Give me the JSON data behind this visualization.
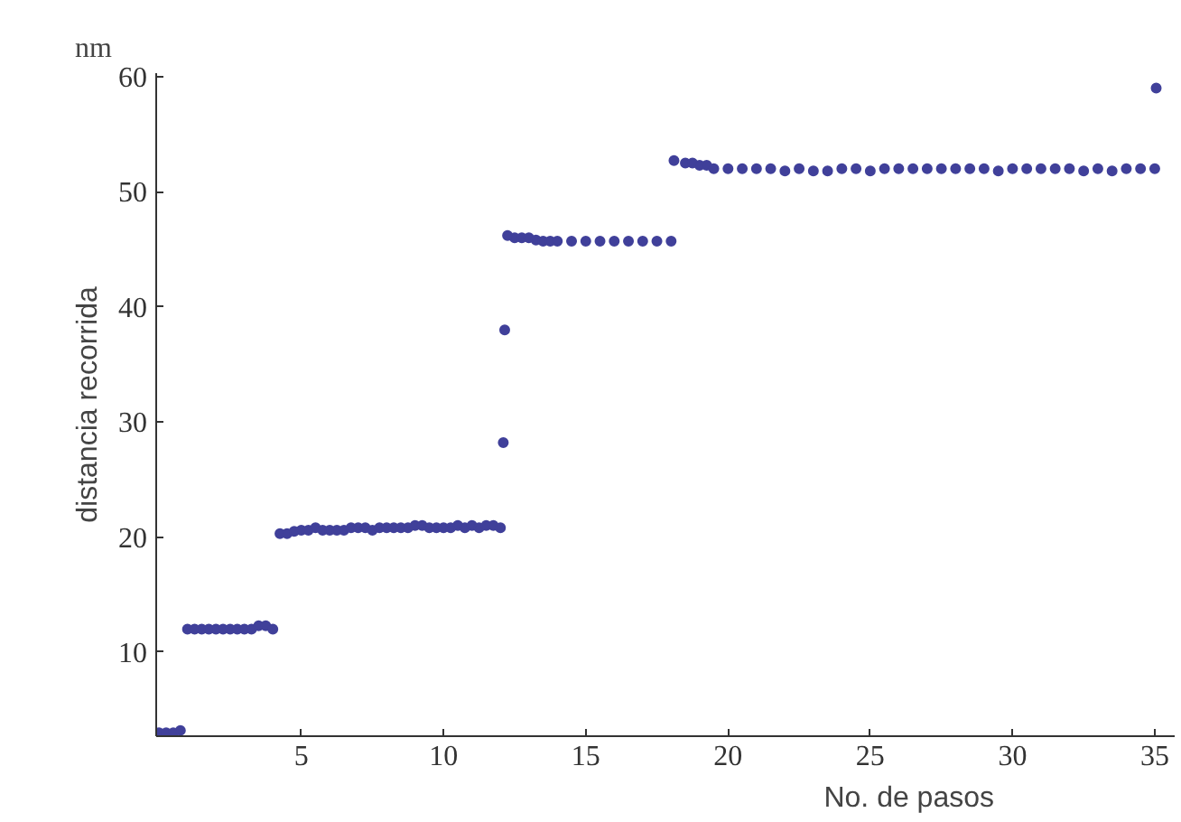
{
  "chart_data": {
    "type": "scatter",
    "xlabel": "No. de pasos",
    "ylabel": "distancia recorrida",
    "annotations": [
      "nm"
    ],
    "series": [
      {
        "color": "#40409a",
        "x": [
          0,
          0.25,
          0.5,
          0.75,
          1,
          1.25,
          1.5,
          1.75,
          2,
          2.25,
          2.5,
          2.75,
          3,
          3.25,
          3.5,
          3.75,
          4,
          4.25,
          4.5,
          4.75,
          5,
          5.25,
          5.5,
          5.75,
          6,
          6.25,
          6.5,
          6.75,
          7,
          7.25,
          7.5,
          7.75,
          8,
          8.25,
          8.5,
          8.75,
          9,
          9.25,
          9.5,
          9.75,
          10,
          10.25,
          10.5,
          10.75,
          11,
          11.25,
          11.5,
          11.75,
          12,
          12.1,
          12.15,
          12.25,
          12.5,
          12.75,
          13,
          13.25,
          13.5,
          13.75,
          14,
          14.5,
          15,
          15.5,
          16,
          16.5,
          17,
          17.5,
          18,
          18.1,
          18.5,
          18.75,
          19,
          19.25,
          19.5,
          20,
          20.5,
          21,
          21.5,
          22,
          22.5,
          23,
          23.5,
          24,
          24.5,
          25,
          25.5,
          26,
          26.5,
          27,
          27.5,
          28,
          28.5,
          29,
          29.5,
          30,
          30.5,
          31,
          31.5,
          32,
          32.5,
          33,
          33.5,
          34,
          34.5,
          35,
          35.05
        ],
        "values": [
          3.0,
          3.0,
          3.0,
          3.2,
          12.0,
          12.0,
          12.0,
          12.0,
          12.0,
          12.0,
          12.0,
          12.0,
          12.0,
          12.0,
          12.3,
          12.3,
          12.0,
          20.3,
          20.3,
          20.5,
          20.6,
          20.6,
          20.8,
          20.6,
          20.6,
          20.6,
          20.6,
          20.8,
          20.8,
          20.8,
          20.6,
          20.8,
          20.8,
          20.8,
          20.8,
          20.8,
          21.0,
          21.0,
          20.8,
          20.8,
          20.8,
          20.8,
          21.0,
          20.8,
          21.0,
          20.8,
          21.0,
          21.0,
          20.8,
          28.2,
          38.0,
          46.2,
          46.0,
          46.0,
          46.0,
          45.8,
          45.7,
          45.7,
          45.7,
          45.7,
          45.7,
          45.7,
          45.7,
          45.7,
          45.7,
          45.7,
          45.7,
          52.7,
          52.5,
          52.5,
          52.3,
          52.3,
          52.0,
          52.0,
          52.0,
          52.0,
          52.0,
          51.8,
          52.0,
          51.8,
          51.8,
          52.0,
          52.0,
          51.8,
          52.0,
          52.0,
          52.0,
          52.0,
          52.0,
          52.0,
          52.0,
          52.0,
          51.8,
          52.0,
          52.0,
          52.0,
          52.0,
          52.0,
          51.8,
          52.0,
          51.8,
          52.0,
          52.0,
          52.0,
          59.0
        ]
      }
    ],
    "xlim": [
      -0.1,
      35.7
    ],
    "ylim": [
      2.7,
      60.3
    ],
    "xticks": [
      5,
      10,
      15,
      20,
      25,
      30,
      35
    ],
    "yticks": [
      10,
      20,
      30,
      40,
      50,
      60
    ],
    "grid": false,
    "marker": "circle"
  }
}
